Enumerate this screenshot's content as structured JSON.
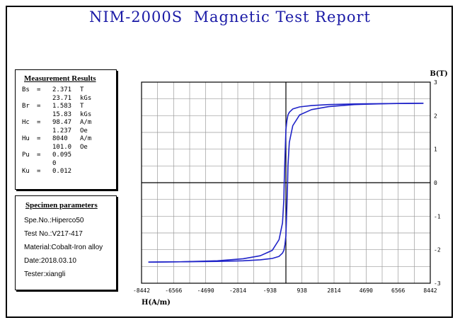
{
  "title": "NIM-2000S  Magnetic Test Report",
  "measurement": {
    "header": "Measurement Results",
    "rows": [
      {
        "key": "Bs",
        "eq": "=",
        "value": "2.371",
        "unit": "T"
      },
      {
        "key": "",
        "eq": "",
        "value": "23.71",
        "unit": "kGs"
      },
      {
        "key": "Br",
        "eq": "=",
        "value": "1.583",
        "unit": "T"
      },
      {
        "key": "",
        "eq": "",
        "value": "15.83",
        "unit": "kGs"
      },
      {
        "key": "Hc",
        "eq": "=",
        "value": "98.47",
        "unit": "A/m"
      },
      {
        "key": "",
        "eq": "",
        "value": "1.237",
        "unit": "Oe"
      },
      {
        "key": "Hu",
        "eq": "=",
        "value": "8040",
        "unit": "A/m"
      },
      {
        "key": "",
        "eq": "",
        "value": "101.0",
        "unit": "Oe"
      },
      {
        "key": "Pu",
        "eq": "=",
        "value": "0.095",
        "unit": ""
      },
      {
        "key": "",
        "eq": "",
        "value": "0",
        "unit": ""
      },
      {
        "key": "Ku",
        "eq": "=",
        "value": "0.012",
        "unit": ""
      }
    ]
  },
  "specimen": {
    "header": "Specimen parameters",
    "rows": [
      "Spe.No.:Hiperco50",
      "Test No.:V217-417",
      "Material:Cobalt-Iron alloy",
      "Date:2018.03.10",
      "Tester:xiangli"
    ]
  },
  "chart_data": {
    "type": "line",
    "xlabel": "H(A/m)",
    "ylabel": "B(T)",
    "xlim": [
      -8442,
      8442
    ],
    "ylim": [
      -3,
      3
    ],
    "xticks": [
      "-8442",
      "-6566",
      "-4690",
      "-2814",
      "-938",
      "938",
      "2814",
      "4690",
      "6566",
      "8442"
    ],
    "yticks": [
      "3",
      "2",
      "1",
      "0",
      "-1",
      "-2",
      "-3"
    ],
    "grid": true,
    "line_color": "#1f23c8",
    "series": [
      {
        "x": [
          -8040,
          -6000,
          -4000,
          -2500,
          -1500,
          -800,
          -400,
          -200,
          -120,
          -98,
          -60,
          0,
          60,
          120,
          200,
          400,
          800,
          1500,
          2500,
          4000,
          6000,
          8040
        ],
        "y": [
          -2.37,
          -2.36,
          -2.33,
          -2.27,
          -2.18,
          -2.02,
          -1.7,
          -1.2,
          -0.5,
          0,
          0.7,
          1.58,
          1.85,
          2.02,
          2.1,
          2.2,
          2.26,
          2.3,
          2.33,
          2.35,
          2.36,
          2.37
        ]
      },
      {
        "x": [
          8040,
          6000,
          4000,
          2500,
          1500,
          800,
          400,
          200,
          120,
          98,
          60,
          0,
          -60,
          -120,
          -200,
          -400,
          -800,
          -1500,
          -2500,
          -4000,
          -6000,
          -8040
        ],
        "y": [
          2.37,
          2.36,
          2.33,
          2.27,
          2.18,
          2.02,
          1.7,
          1.2,
          0.5,
          0,
          -0.7,
          -1.58,
          -1.85,
          -2.02,
          -2.1,
          -2.2,
          -2.26,
          -2.3,
          -2.33,
          -2.35,
          -2.36,
          -2.37
        ]
      }
    ]
  }
}
